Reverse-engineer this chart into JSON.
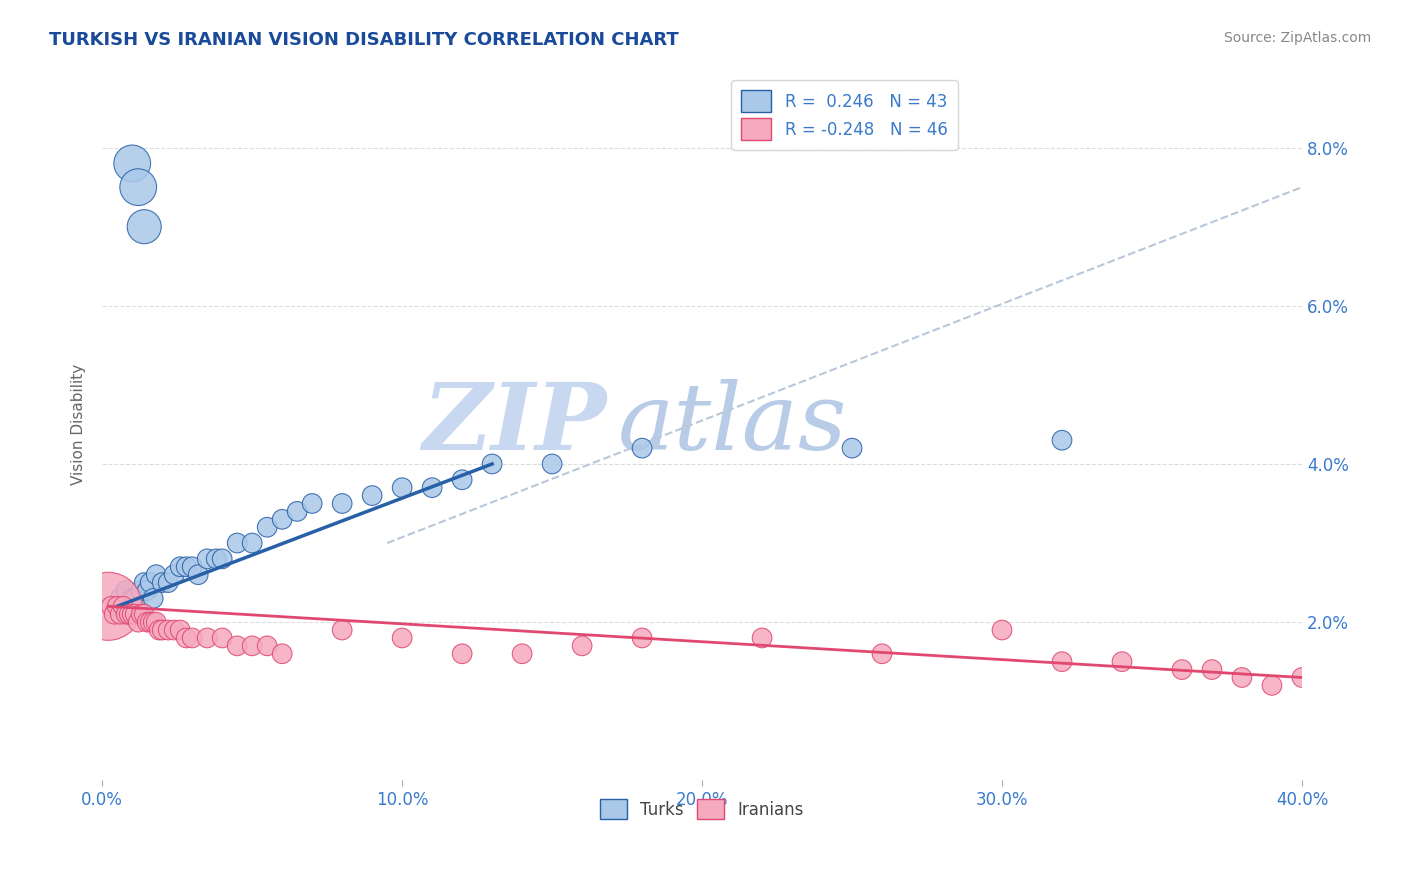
{
  "title": "TURKISH VS IRANIAN VISION DISABILITY CORRELATION CHART",
  "source": "Source: ZipAtlas.com",
  "ylabel": "Vision Disability",
  "xlim": [
    0.0,
    0.4
  ],
  "ylim": [
    0.0,
    0.09
  ],
  "turks_R": 0.246,
  "turks_N": 43,
  "iranians_R": -0.248,
  "iranians_N": 46,
  "turks_color": "#aac8e8",
  "iranians_color": "#f5aabf",
  "turks_line_color": "#2860a8",
  "iranians_line_color": "#e04870",
  "gray_dash_color": "#b8c8d8",
  "watermark_color_zip": "#c8d8f0",
  "watermark_color_atlas": "#b8cce8",
  "background_color": "#ffffff",
  "title_color": "#1a4a9a",
  "axis_label_color": "#3a7acc",
  "y_tick_vals": [
    0.02,
    0.04,
    0.06,
    0.08
  ],
  "x_tick_vals": [
    0.0,
    0.1,
    0.2,
    0.3,
    0.4
  ],
  "turks_x": [
    0.01,
    0.012,
    0.014,
    0.005,
    0.006,
    0.007,
    0.008,
    0.009,
    0.01,
    0.011,
    0.012,
    0.013,
    0.014,
    0.015,
    0.016,
    0.017,
    0.018,
    0.02,
    0.022,
    0.024,
    0.026,
    0.028,
    0.03,
    0.032,
    0.035,
    0.038,
    0.04,
    0.045,
    0.05,
    0.055,
    0.06,
    0.065,
    0.07,
    0.08,
    0.09,
    0.1,
    0.11,
    0.12,
    0.13,
    0.15,
    0.18,
    0.25,
    0.32
  ],
  "turks_y": [
    0.078,
    0.075,
    0.07,
    0.022,
    0.023,
    0.022,
    0.024,
    0.022,
    0.023,
    0.023,
    0.022,
    0.024,
    0.025,
    0.024,
    0.025,
    0.023,
    0.026,
    0.025,
    0.025,
    0.026,
    0.027,
    0.027,
    0.027,
    0.026,
    0.028,
    0.028,
    0.028,
    0.03,
    0.03,
    0.032,
    0.033,
    0.034,
    0.035,
    0.035,
    0.036,
    0.037,
    0.037,
    0.038,
    0.04,
    0.04,
    0.042,
    0.042,
    0.043
  ],
  "turks_size": [
    35,
    35,
    30,
    10,
    10,
    10,
    10,
    10,
    10,
    10,
    10,
    10,
    10,
    10,
    10,
    10,
    10,
    10,
    10,
    10,
    10,
    10,
    10,
    10,
    10,
    10,
    10,
    10,
    10,
    10,
    10,
    10,
    10,
    10,
    10,
    10,
    10,
    10,
    10,
    10,
    10,
    10,
    10
  ],
  "iranians_x": [
    0.002,
    0.003,
    0.004,
    0.005,
    0.006,
    0.007,
    0.008,
    0.009,
    0.01,
    0.011,
    0.012,
    0.013,
    0.014,
    0.015,
    0.016,
    0.017,
    0.018,
    0.019,
    0.02,
    0.022,
    0.024,
    0.026,
    0.028,
    0.03,
    0.035,
    0.04,
    0.045,
    0.05,
    0.055,
    0.06,
    0.08,
    0.1,
    0.12,
    0.14,
    0.16,
    0.18,
    0.22,
    0.26,
    0.3,
    0.32,
    0.34,
    0.36,
    0.37,
    0.38,
    0.39,
    0.4
  ],
  "iranians_y": [
    0.022,
    0.022,
    0.021,
    0.022,
    0.021,
    0.022,
    0.021,
    0.021,
    0.021,
    0.021,
    0.02,
    0.021,
    0.021,
    0.02,
    0.02,
    0.02,
    0.02,
    0.019,
    0.019,
    0.019,
    0.019,
    0.019,
    0.018,
    0.018,
    0.018,
    0.018,
    0.017,
    0.017,
    0.017,
    0.016,
    0.019,
    0.018,
    0.016,
    0.016,
    0.017,
    0.018,
    0.018,
    0.016,
    0.019,
    0.015,
    0.015,
    0.014,
    0.014,
    0.013,
    0.012,
    0.013
  ],
  "iranians_size": [
    120,
    10,
    10,
    10,
    10,
    10,
    10,
    10,
    10,
    10,
    10,
    10,
    10,
    10,
    10,
    10,
    10,
    10,
    10,
    10,
    10,
    10,
    10,
    10,
    10,
    10,
    10,
    10,
    10,
    10,
    10,
    10,
    10,
    10,
    10,
    10,
    10,
    10,
    10,
    10,
    10,
    10,
    10,
    10,
    10,
    10
  ],
  "blue_line_x": [
    0.005,
    0.13
  ],
  "blue_line_y": [
    0.022,
    0.04
  ],
  "pink_line_x": [
    0.002,
    0.4
  ],
  "pink_line_y": [
    0.022,
    0.013
  ],
  "gray_line_x": [
    0.095,
    0.4
  ],
  "gray_line_y": [
    0.03,
    0.075
  ]
}
